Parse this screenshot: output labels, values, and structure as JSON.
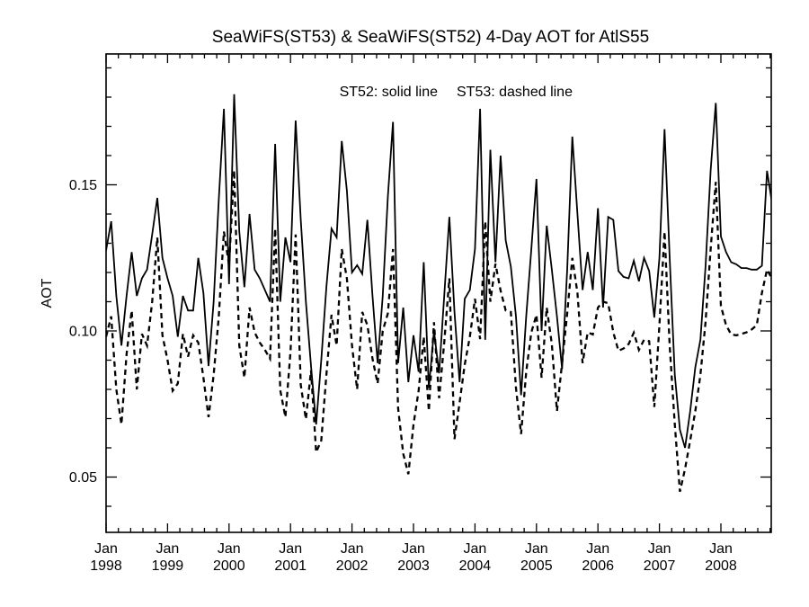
{
  "page": {
    "background": "#ffffff",
    "text_color": "#000000"
  },
  "chart_data": {
    "type": "line",
    "title": "SeaWiFS(ST53) & SeaWiFS(ST52) 4-Day AOT for AtlS55",
    "legend": {
      "st52": "ST52: solid line",
      "st53": "ST53: dashed line"
    },
    "ylabel": "AOT",
    "xlabel_month": "Jan",
    "x_tick_years": [
      "1998",
      "1999",
      "2000",
      "2001",
      "2002",
      "2003",
      "2004",
      "2005",
      "2006",
      "2007",
      "2008"
    ],
    "y_tick_labels": [
      "0.05",
      "0.10",
      "0.15"
    ],
    "y_tick_values": [
      0.05,
      0.1,
      0.15
    ],
    "y_minor_step": 0.01,
    "ylim": [
      0.031,
      0.195
    ],
    "xlim_years": [
      1998.0,
      2008.92
    ],
    "points_start_year": 1998,
    "points_per_year": 12,
    "grid": false,
    "legend_position": "top-center-inside",
    "line_color": "#000000",
    "series": [
      {
        "name": "ST52",
        "style": "solid",
        "values": [
          0.1275,
          0.1375,
          0.112,
          0.095,
          0.112,
          0.127,
          0.112,
          0.118,
          0.121,
          0.133,
          0.1455,
          0.125,
          0.118,
          0.112,
          0.098,
          0.112,
          0.107,
          0.107,
          0.125,
          0.113,
          0.088,
          0.11,
          0.145,
          0.176,
          0.116,
          0.181,
          0.134,
          0.115,
          0.14,
          0.121,
          0.118,
          0.114,
          0.11,
          0.164,
          0.11,
          0.132,
          0.1235,
          0.172,
          0.138,
          0.11,
          0.088,
          0.068,
          0.09,
          0.115,
          0.135,
          0.132,
          0.165,
          0.148,
          0.12,
          0.1225,
          0.1195,
          0.138,
          0.112,
          0.089,
          0.112,
          0.146,
          0.1715,
          0.089,
          0.108,
          0.0825,
          0.0985,
          0.086,
          0.1235,
          0.0805,
          0.1,
          0.0855,
          0.112,
          0.139,
          0.1065,
          0.0825,
          0.111,
          0.114,
          0.128,
          0.176,
          0.097,
          0.162,
          0.1235,
          0.16,
          0.131,
          0.122,
          0.105,
          0.078,
          0.105,
          0.128,
          0.152,
          0.1,
          0.136,
          0.121,
          0.105,
          0.087,
          0.121,
          0.1665,
          0.14,
          0.114,
          0.127,
          0.114,
          0.142,
          0.108,
          0.139,
          0.138,
          0.1205,
          0.1185,
          0.118,
          0.124,
          0.117,
          0.125,
          0.1205,
          0.1046,
          0.125,
          0.169,
          0.125,
          0.085,
          0.0662,
          0.06,
          0.0725,
          0.0875,
          0.097,
          0.122,
          0.155,
          0.178,
          0.1323,
          0.127,
          0.1235,
          0.1228,
          0.1215,
          0.1215,
          0.121,
          0.121,
          0.1223,
          0.1548,
          0.1435
        ]
      },
      {
        "name": "ST53",
        "style": "dashed",
        "values": [
          0.098,
          0.105,
          0.08,
          0.068,
          0.092,
          0.107,
          0.08,
          0.099,
          0.095,
          0.11,
          0.132,
          0.0985,
          0.09,
          0.0795,
          0.082,
          0.099,
          0.0912,
          0.0985,
          0.096,
          0.084,
          0.0705,
          0.085,
          0.105,
          0.134,
          0.1225,
          0.155,
          0.095,
          0.084,
          0.108,
          0.0995,
          0.096,
          0.0935,
          0.0905,
          0.135,
          0.0797,
          0.0705,
          0.093,
          0.133,
          0.0815,
          0.0698,
          0.0865,
          0.0585,
          0.0625,
          0.085,
          0.1055,
          0.095,
          0.128,
          0.118,
          0.095,
          0.08,
          0.1065,
          0.102,
          0.0905,
          0.082,
          0.1,
          0.106,
          0.128,
          0.0735,
          0.058,
          0.051,
          0.068,
          0.0795,
          0.098,
          0.0726,
          0.103,
          0.077,
          0.096,
          0.118,
          0.063,
          0.0755,
          0.0885,
          0.098,
          0.111,
          0.0972,
          0.1375,
          0.11,
          0.123,
          0.1138,
          0.107,
          0.1065,
          0.0805,
          0.0647,
          0.086,
          0.0995,
          0.1055,
          0.084,
          0.108,
          0.0955,
          0.0726,
          0.089,
          0.106,
          0.125,
          0.113,
          0.089,
          0.0995,
          0.0988,
          0.108,
          0.11,
          0.1095,
          0.0995,
          0.0932,
          0.094,
          0.0955,
          0.0994,
          0.0935,
          0.097,
          0.0965,
          0.074,
          0.102,
          0.134,
          0.095,
          0.068,
          0.045,
          0.0528,
          0.0625,
          0.0725,
          0.085,
          0.103,
          0.128,
          0.151,
          0.1086,
          0.102,
          0.0988,
          0.0985,
          0.099,
          0.0995,
          0.1005,
          0.102,
          0.113,
          0.121,
          0.1178
        ]
      }
    ]
  }
}
